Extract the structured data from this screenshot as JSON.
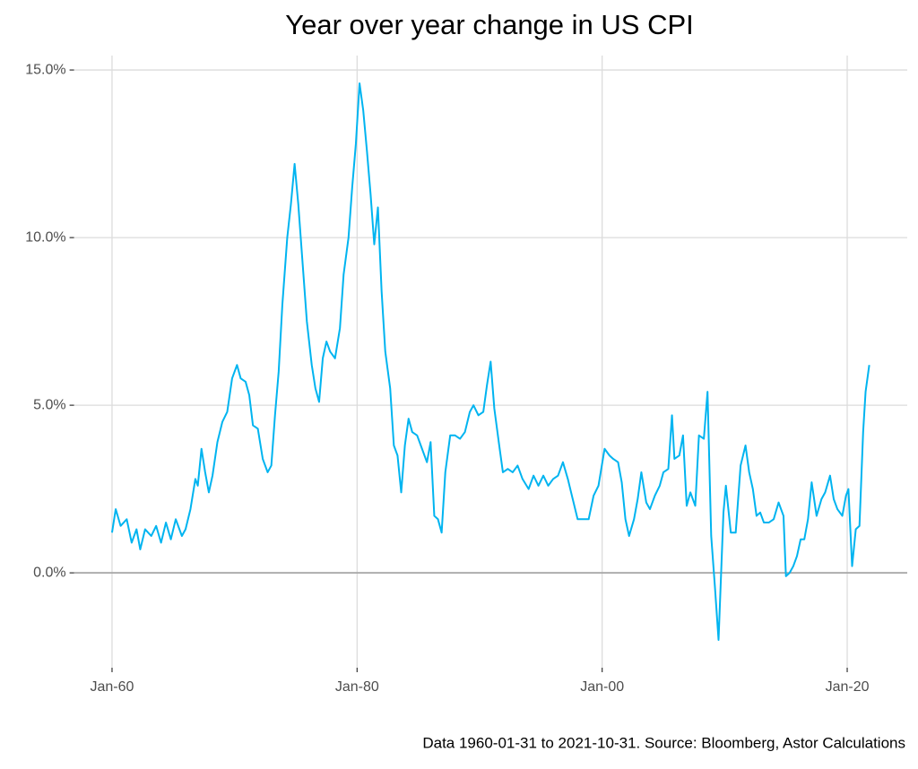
{
  "chart_data": {
    "type": "line",
    "title": "Year over year change in US CPI",
    "caption": "Data 1960-01-31 to 2021-10-31.  Source: Bloomberg, Astor Calculations",
    "color": "#00b4f0",
    "grid": true,
    "xlim": [
      1956.9,
      2024.9
    ],
    "ylim": [
      -2.83,
      15.43
    ],
    "xticks": [
      {
        "value": 1960,
        "label": "Jan-60"
      },
      {
        "value": 1980,
        "label": "Jan-80"
      },
      {
        "value": 2000,
        "label": "Jan-00"
      },
      {
        "value": 2020,
        "label": "Jan-20"
      }
    ],
    "yticks": [
      {
        "value": 0,
        "label": "0.0%"
      },
      {
        "value": 5,
        "label": "5.0%"
      },
      {
        "value": 10,
        "label": "10.0%"
      },
      {
        "value": 15,
        "label": "15.0%"
      }
    ],
    "x": [
      1960.0,
      1960.3,
      1960.7,
      1961.2,
      1961.6,
      1962.0,
      1962.3,
      1962.7,
      1963.2,
      1963.6,
      1964.0,
      1964.4,
      1964.8,
      1965.2,
      1965.7,
      1966.0,
      1966.4,
      1966.8,
      1967.0,
      1967.3,
      1967.6,
      1967.9,
      1968.2,
      1968.6,
      1969.0,
      1969.4,
      1969.8,
      1970.2,
      1970.5,
      1970.9,
      1971.2,
      1971.5,
      1971.9,
      1972.3,
      1972.7,
      1973.0,
      1973.3,
      1973.6,
      1973.9,
      1974.3,
      1974.6,
      1974.9,
      1975.2,
      1975.5,
      1975.9,
      1976.3,
      1976.6,
      1976.9,
      1977.2,
      1977.5,
      1977.8,
      1978.2,
      1978.6,
      1978.9,
      1979.3,
      1979.6,
      1979.9,
      1980.2,
      1980.5,
      1980.8,
      1981.1,
      1981.4,
      1981.7,
      1982.0,
      1982.3,
      1982.7,
      1983.0,
      1983.3,
      1983.6,
      1983.9,
      1984.2,
      1984.5,
      1984.9,
      1985.3,
      1985.7,
      1986.0,
      1986.3,
      1986.6,
      1986.9,
      1987.2,
      1987.6,
      1988.0,
      1988.4,
      1988.8,
      1989.2,
      1989.5,
      1989.9,
      1990.3,
      1990.6,
      1990.9,
      1991.2,
      1991.6,
      1991.9,
      1992.3,
      1992.7,
      1993.1,
      1993.5,
      1994.0,
      1994.4,
      1994.8,
      1995.2,
      1995.6,
      1996.0,
      1996.4,
      1996.8,
      1997.2,
      1997.6,
      1998.0,
      1998.4,
      1998.9,
      1999.3,
      1999.7,
      2000.2,
      2000.6,
      2000.9,
      2001.3,
      2001.6,
      2001.9,
      2002.2,
      2002.6,
      2002.9,
      2003.2,
      2003.6,
      2003.9,
      2004.3,
      2004.7,
      2005.0,
      2005.4,
      2005.7,
      2005.9,
      2006.3,
      2006.6,
      2006.9,
      2007.2,
      2007.6,
      2007.9,
      2008.3,
      2008.6,
      2008.9,
      2009.2,
      2009.5,
      2009.9,
      2010.1,
      2010.5,
      2010.9,
      2011.3,
      2011.7,
      2012.0,
      2012.3,
      2012.6,
      2012.9,
      2013.2,
      2013.6,
      2014.0,
      2014.4,
      2014.8,
      2015.0,
      2015.3,
      2015.6,
      2015.9,
      2016.2,
      2016.5,
      2016.8,
      2017.1,
      2017.5,
      2017.9,
      2018.2,
      2018.6,
      2018.9,
      2019.2,
      2019.6,
      2019.9,
      2020.1,
      2020.4,
      2020.7,
      2021.0,
      2021.3,
      2021.5,
      2021.8
    ],
    "values": [
      1.2,
      1.9,
      1.4,
      1.6,
      0.9,
      1.3,
      0.7,
      1.3,
      1.1,
      1.4,
      0.9,
      1.5,
      1.0,
      1.6,
      1.1,
      1.3,
      1.9,
      2.8,
      2.6,
      3.7,
      3.0,
      2.4,
      2.9,
      3.9,
      4.5,
      4.8,
      5.8,
      6.2,
      5.8,
      5.7,
      5.3,
      4.4,
      4.3,
      3.4,
      3.0,
      3.2,
      4.7,
      6.0,
      8.0,
      10.0,
      11.0,
      12.2,
      11.0,
      9.5,
      7.5,
      6.2,
      5.5,
      5.1,
      6.4,
      6.9,
      6.6,
      6.4,
      7.3,
      8.9,
      10.0,
      11.5,
      12.8,
      14.6,
      13.8,
      12.6,
      11.3,
      9.8,
      10.9,
      8.4,
      6.6,
      5.5,
      3.8,
      3.5,
      2.4,
      3.8,
      4.6,
      4.2,
      4.1,
      3.7,
      3.3,
      3.9,
      1.7,
      1.6,
      1.2,
      3.0,
      4.1,
      4.1,
      4.0,
      4.2,
      4.8,
      5.0,
      4.7,
      4.8,
      5.6,
      6.3,
      4.9,
      3.8,
      3.0,
      3.1,
      3.0,
      3.2,
      2.8,
      2.5,
      2.9,
      2.6,
      2.9,
      2.6,
      2.8,
      2.9,
      3.3,
      2.8,
      2.2,
      1.6,
      1.6,
      1.6,
      2.3,
      2.6,
      3.7,
      3.5,
      3.4,
      3.3,
      2.7,
      1.6,
      1.1,
      1.6,
      2.2,
      3.0,
      2.1,
      1.9,
      2.3,
      2.6,
      3.0,
      3.1,
      4.7,
      3.4,
      3.5,
      4.1,
      2.0,
      2.4,
      2.0,
      4.1,
      4.0,
      5.4,
      1.1,
      -0.4,
      -2.0,
      1.8,
      2.6,
      1.2,
      1.2,
      3.2,
      3.8,
      3.0,
      2.5,
      1.7,
      1.8,
      1.5,
      1.5,
      1.6,
      2.1,
      1.7,
      -0.1,
      0.0,
      0.2,
      0.5,
      1.0,
      1.0,
      1.6,
      2.7,
      1.7,
      2.2,
      2.4,
      2.9,
      2.2,
      1.9,
      1.7,
      2.3,
      2.5,
      0.2,
      1.3,
      1.4,
      4.2,
      5.4,
      6.2
    ]
  }
}
